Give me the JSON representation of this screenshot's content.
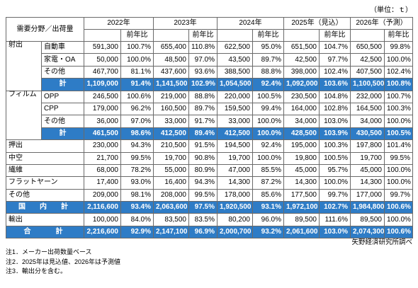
{
  "unit_note": "（単位：ｔ）",
  "header": {
    "category": "需要分野／出荷量",
    "years": [
      "2022年",
      "2023年",
      "2024年",
      "2025年（見込）",
      "2026年（予測）"
    ],
    "yoy_label": "前年比"
  },
  "sections": [
    {
      "category": "射出",
      "rows": [
        {
          "label": "自動車",
          "cells": [
            "591,300",
            "100.7%",
            "655,400",
            "110.8%",
            "622,500",
            "95.0%",
            "651,500",
            "104.7%",
            "650,500",
            "99.8%"
          ]
        },
        {
          "label": "家電・OA",
          "cells": [
            "50,000",
            "100.0%",
            "48,500",
            "97.0%",
            "43,500",
            "89.7%",
            "42,500",
            "97.7%",
            "42,500",
            "100.0%"
          ]
        },
        {
          "label": "その他",
          "cells": [
            "467,700",
            "81.1%",
            "437,600",
            "93.6%",
            "388,500",
            "88.8%",
            "398,000",
            "102.4%",
            "407,500",
            "102.4%"
          ]
        },
        {
          "label": "計",
          "highlighted": true,
          "cells": [
            "1,109,000",
            "91.4%",
            "1,141,500",
            "102.9%",
            "1,054,500",
            "92.4%",
            "1,092,000",
            "103.6%",
            "1,100,500",
            "100.8%"
          ]
        }
      ]
    },
    {
      "category": "フィルム",
      "rows": [
        {
          "label": "OPP",
          "cells": [
            "246,500",
            "100.6%",
            "219,000",
            "88.8%",
            "220,000",
            "100.5%",
            "230,500",
            "104.8%",
            "232,000",
            "100.7%"
          ]
        },
        {
          "label": "CPP",
          "cells": [
            "179,000",
            "96.2%",
            "160,500",
            "89.7%",
            "159,500",
            "99.4%",
            "164,000",
            "102.8%",
            "164,500",
            "100.3%"
          ]
        },
        {
          "label": "その他",
          "cells": [
            "36,000",
            "97.0%",
            "33,000",
            "91.7%",
            "33,000",
            "100.0%",
            "34,000",
            "103.0%",
            "34,000",
            "100.0%"
          ]
        },
        {
          "label": "計",
          "highlighted": true,
          "cells": [
            "461,500",
            "98.6%",
            "412,500",
            "89.4%",
            "412,500",
            "100.0%",
            "428,500",
            "103.9%",
            "430,500",
            "100.5%"
          ]
        }
      ]
    },
    {
      "category": "押出",
      "cells": [
        "230,000",
        "94.3%",
        "210,500",
        "91.5%",
        "194,500",
        "92.4%",
        "195,000",
        "100.3%",
        "197,800",
        "101.4%"
      ]
    },
    {
      "category": "中空",
      "cells": [
        "21,700",
        "99.5%",
        "19,700",
        "90.8%",
        "19,700",
        "100.0%",
        "19,800",
        "100.5%",
        "19,700",
        "99.5%"
      ]
    },
    {
      "category": "繊維",
      "cells": [
        "68,000",
        "78.2%",
        "55,000",
        "80.9%",
        "47,000",
        "85.5%",
        "45,000",
        "95.7%",
        "45,000",
        "100.0%"
      ]
    },
    {
      "category": "フラットヤーン",
      "cells": [
        "17,400",
        "93.0%",
        "16,400",
        "94.3%",
        "14,300",
        "87.2%",
        "14,300",
        "100.0%",
        "14,300",
        "100.0%"
      ]
    },
    {
      "category": "その他",
      "cells": [
        "209,000",
        "98.1%",
        "208,000",
        "99.5%",
        "178,000",
        "85.6%",
        "177,500",
        "99.7%",
        "177,000",
        "99.7%"
      ]
    },
    {
      "category": "国　内　計",
      "highlighted": true,
      "cells": [
        "2,116,600",
        "93.4%",
        "2,063,600",
        "97.5%",
        "1,920,500",
        "93.1%",
        "1,972,100",
        "102.7%",
        "1,984,800",
        "100.6%"
      ]
    },
    {
      "category": "輸出",
      "cells": [
        "100,000",
        "84.0%",
        "83,500",
        "83.5%",
        "80,200",
        "96.0%",
        "89,500",
        "111.6%",
        "89,500",
        "100.0%"
      ]
    },
    {
      "category": "合　　計",
      "highlighted": true,
      "cells": [
        "2,216,600",
        "92.9%",
        "2,147,100",
        "96.9%",
        "2,000,700",
        "93.2%",
        "2,061,600",
        "103.0%",
        "2,074,300",
        "100.6%"
      ]
    }
  ],
  "source": "矢野経済研究所調べ",
  "notes": [
    "注1．メーカー出荷数量ベース",
    "注2．2025年は見込値、2026年は予測値",
    "注3．輸出分を含む。"
  ],
  "colors": {
    "highlight_row": "#2E7CC6",
    "highlight_text": "#FFFFFF",
    "border": "#6A6A6A"
  }
}
